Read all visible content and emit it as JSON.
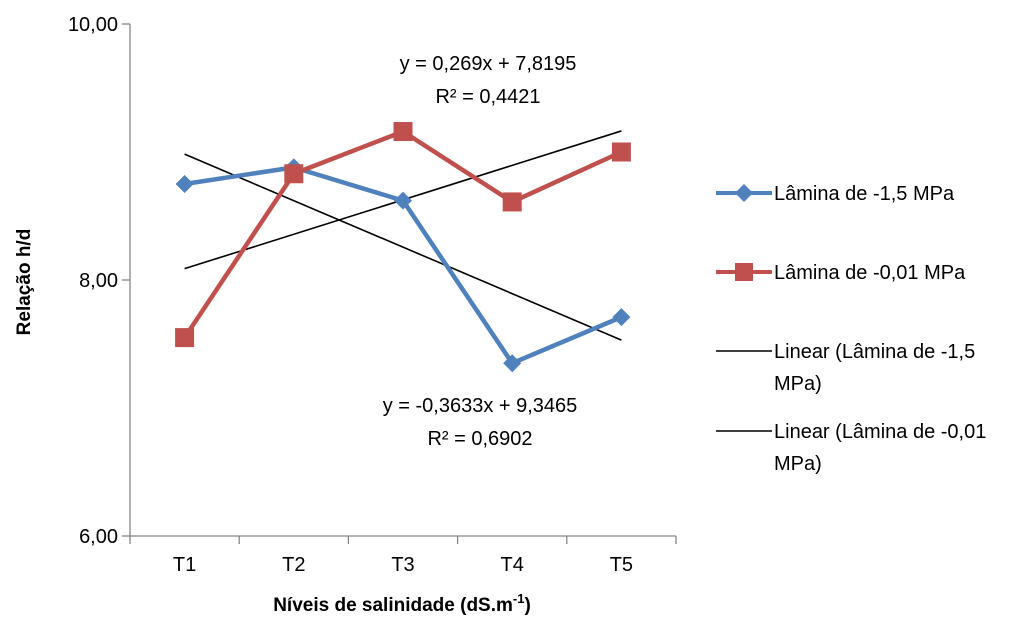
{
  "chart_data": {
    "type": "line",
    "xlabel": "Níveis de salinidade (dS.m",
    "xlabel_sup": "-1",
    "xlabel_end": ")",
    "ylabel": "Relação h/d",
    "categories": [
      "T1",
      "T2",
      "T3",
      "T4",
      "T5"
    ],
    "ylim": [
      6,
      10
    ],
    "yticks": [
      "6,00",
      "8,00",
      "10,00"
    ],
    "ytick_values": [
      6,
      8,
      10
    ],
    "grid": false,
    "legend_position": "right",
    "series": [
      {
        "name": "Lâmina de -1,5 MPa",
        "values": [
          8.75,
          8.88,
          8.62,
          7.35,
          7.71
        ],
        "color": "#4F81BD",
        "marker": "diamond"
      },
      {
        "name": "Lâmina de -0,01 MPa",
        "values": [
          7.55,
          8.83,
          9.16,
          8.61,
          9.0
        ],
        "color": "#C0504D",
        "marker": "square"
      }
    ],
    "trendlines": [
      {
        "name_line1": "Linear (Lâmina de -1,5",
        "name_line2": "MPa)",
        "slope": -0.3633,
        "intercept": 9.3465,
        "equation": "y = -0,3633x + 9,3465",
        "r2": "R² = 0,6902",
        "color": "#000000"
      },
      {
        "name_line1": "Linear (Lâmina de -0,01",
        "name_line2": "MPa)",
        "slope": 0.269,
        "intercept": 7.8195,
        "equation": "y = 0,269x + 7,8195",
        "r2": "R² = 0,4421",
        "color": "#000000"
      }
    ]
  }
}
